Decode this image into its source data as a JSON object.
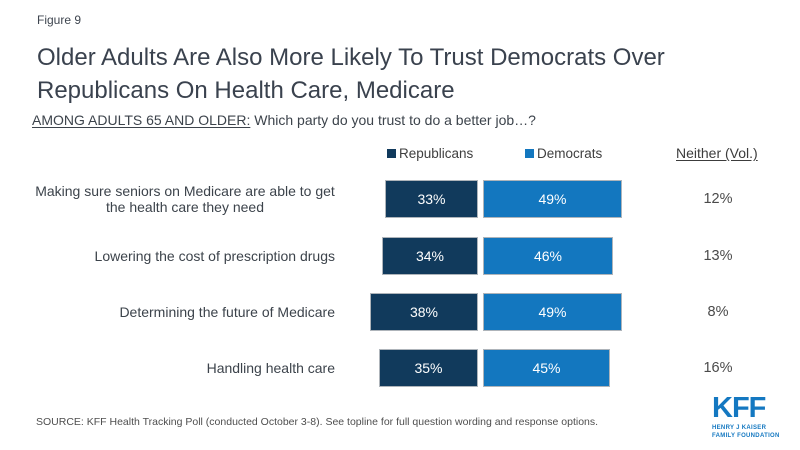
{
  "figure_label": "Figure 9",
  "title": "Older Adults Are Also More Likely To Trust Democrats Over Republicans On Health Care, Medicare",
  "subtitle": {
    "emphasis": "AMONG ADULTS 65 AND OLDER:",
    "question": " Which party do you trust to do a better job…?"
  },
  "legend": {
    "republicans": {
      "label": "Republicans",
      "color": "#113a5c"
    },
    "democrats": {
      "label": "Democrats",
      "color": "#1377bf"
    }
  },
  "neither_header": "Neither (Vol.)",
  "chart_data": {
    "type": "bar",
    "orientation": "horizontal",
    "legend_position": "top",
    "value_suffix": "%",
    "categories": [
      "Making sure seniors on Medicare are able to get the health care they need",
      "Lowering the cost of prescription drugs",
      "Determining the future of Medicare",
      "Handling health care"
    ],
    "series": [
      {
        "name": "Republicans",
        "color": "#113a5c",
        "values": [
          33,
          34,
          38,
          35
        ]
      },
      {
        "name": "Democrats",
        "color": "#1377bf",
        "values": [
          49,
          46,
          49,
          45
        ]
      }
    ],
    "neither_values": [
      12,
      13,
      8,
      16
    ],
    "rows": [
      {
        "label": "Making sure seniors on Medicare are able to get the health care they need",
        "republicans": "33%",
        "democrats": "49%",
        "neither": "12%"
      },
      {
        "label": "Lowering the cost of prescription drugs",
        "republicans": "34%",
        "democrats": "46%",
        "neither": "13%"
      },
      {
        "label": "Determining the future of Medicare",
        "republicans": "38%",
        "democrats": "49%",
        "neither": "8%"
      },
      {
        "label": "Handling health care",
        "republicans": "35%",
        "democrats": "45%",
        "neither": "16%"
      }
    ]
  },
  "source": "SOURCE: KFF Health Tracking Poll (conducted October 3-8). See topline for full question wording and response options.",
  "logo": {
    "text": "KFF",
    "line1": "HENRY J KAISER",
    "line2": "FAMILY FOUNDATION",
    "color": "#1478c1"
  }
}
